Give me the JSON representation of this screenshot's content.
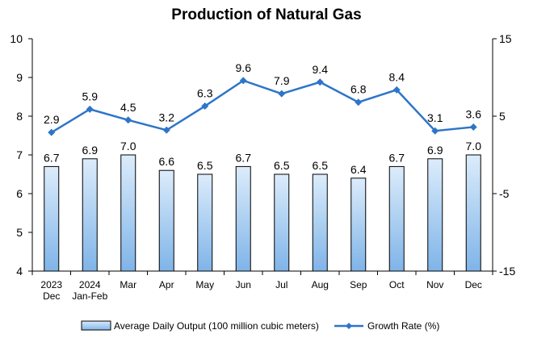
{
  "chart_data": {
    "type": "bar",
    "title": "Production of Natural Gas",
    "categories": [
      [
        "2023",
        "Dec"
      ],
      [
        "2024",
        "Jan-Feb"
      ],
      [
        "Mar"
      ],
      [
        "Apr"
      ],
      [
        "May"
      ],
      [
        "Jun"
      ],
      [
        "Jul"
      ],
      [
        "Aug"
      ],
      [
        "Sep"
      ],
      [
        "Oct"
      ],
      [
        "Nov"
      ],
      [
        "Dec"
      ]
    ],
    "series": [
      {
        "name": "Average Daily Output (100 million cubic meters)",
        "type": "bar",
        "axis": "left",
        "values": [
          6.7,
          6.9,
          7.0,
          6.6,
          6.5,
          6.7,
          6.5,
          6.5,
          6.4,
          6.7,
          6.9,
          7.0
        ],
        "labels": [
          "6.7",
          "6.9",
          "7.0",
          "6.6",
          "6.5",
          "6.7",
          "6.5",
          "6.5",
          "6.4",
          "6.7",
          "6.9",
          "7.0"
        ]
      },
      {
        "name": "Growth Rate (%)",
        "type": "line",
        "axis": "right",
        "values": [
          2.9,
          5.9,
          4.5,
          3.2,
          6.3,
          9.6,
          7.9,
          9.4,
          6.8,
          8.4,
          3.1,
          3.6
        ],
        "labels": [
          "2.9",
          "5.9",
          "4.5",
          "3.2",
          "6.3",
          "9.6",
          "7.9",
          "9.4",
          "6.8",
          "8.4",
          "3.1",
          "3.6"
        ]
      }
    ],
    "y_left": {
      "min": 4,
      "max": 10,
      "ticks": [
        4,
        5,
        6,
        7,
        8,
        9,
        10
      ]
    },
    "y_right": {
      "min": -15,
      "max": 15,
      "ticks": [
        -15,
        -5,
        5,
        15
      ]
    },
    "grid": false,
    "legend_position": "bottom",
    "colors": {
      "bar_fill_top": "#dcecfb",
      "bar_fill_bottom": "#7fb4e8",
      "bar_stroke": "#000000",
      "line": "#2e75c9",
      "axis": "#000000"
    }
  }
}
